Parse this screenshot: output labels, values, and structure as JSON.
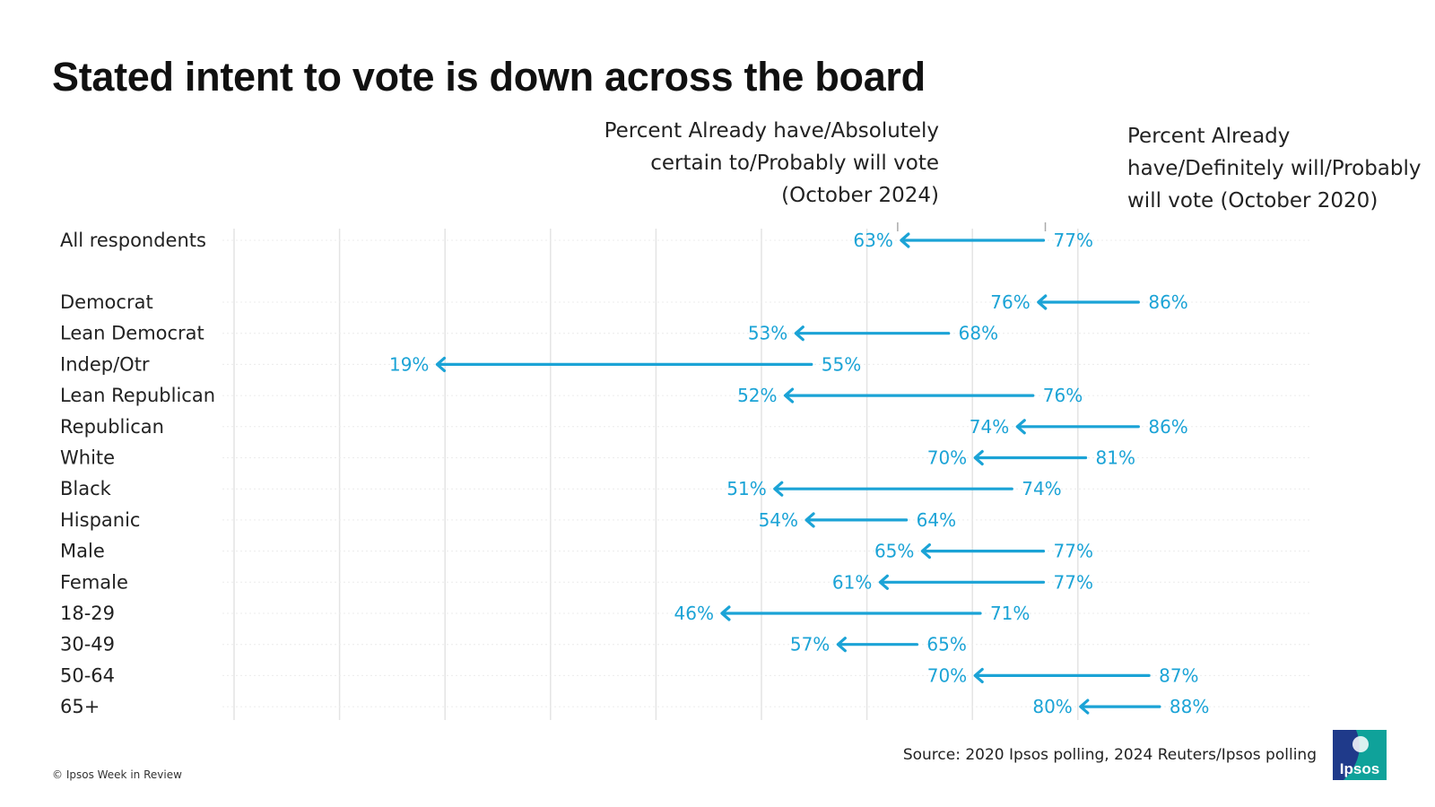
{
  "title": "Stated intent to vote is down across the board",
  "annotations": {
    "end_label": [
      "Percent Already have/Absolutely",
      "certain to/Probably will vote",
      "(October 2024)"
    ],
    "start_label": [
      "Percent Already",
      "have/Definitely will/Probably",
      "will vote (October 2020)"
    ]
  },
  "colors": {
    "accent": "#1ba3d6",
    "text": "#222222",
    "grid": "#e4e4e4"
  },
  "source": "Source: 2020 Ipsos polling, 2024 Reuters/Ipsos polling",
  "copyright": "© Ipsos Week in Review",
  "logo": {
    "text": "Ipsos",
    "colors": [
      "#1f3a8a",
      "#0fa29a"
    ]
  },
  "chart_data": {
    "type": "arrow",
    "value_suffix": "%",
    "xlim": [
      0,
      100
    ],
    "categories": [
      "All respondents",
      "Democrat",
      "Lean Democrat",
      "Indep/Otr",
      "Lean Republican",
      "Republican",
      "White",
      "Black",
      "Hispanic",
      "Male",
      "Female",
      "18-29",
      "30-49",
      "50-64",
      "65+"
    ],
    "series": [
      {
        "values": [
          77,
          86,
          68,
          55,
          76,
          86,
          81,
          74,
          64,
          77,
          77,
          71,
          65,
          87,
          88
        ]
      },
      {
        "values": [
          63,
          76,
          53,
          19,
          52,
          74,
          70,
          51,
          54,
          65,
          61,
          46,
          57,
          70,
          80
        ]
      }
    ]
  }
}
